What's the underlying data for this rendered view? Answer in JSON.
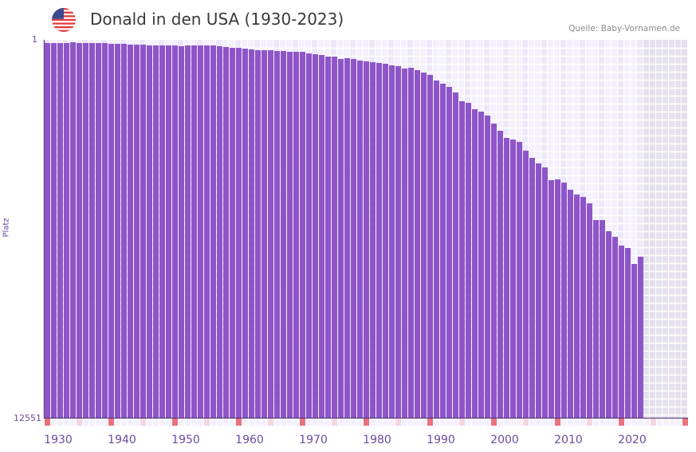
{
  "header": {
    "title": "Donald in den USA (1930-2023)",
    "source": "Quelle: Baby-Vornamen.de",
    "flag_icon": "us-flag-icon"
  },
  "colors": {
    "bar": "#8e55c8",
    "axis": "#6b4a9e",
    "decade_marker": "#e8737c",
    "half_decade_marker": "#f5d6de",
    "cell_a": "#f4f0fc",
    "cell_b": "#ede8f8",
    "future": "#e4e0ee"
  },
  "chart_data": {
    "type": "bar",
    "title": "Donald in den USA (1930-2023)",
    "xlabel": "",
    "ylabel": "Platz",
    "y_inverted": true,
    "ylim": [
      1,
      12551
    ],
    "y_tick_labels": [
      "1",
      "12551"
    ],
    "x_tick_labels": [
      "1930",
      "1940",
      "1950",
      "1960",
      "1970",
      "1980",
      "1990",
      "2000",
      "2010",
      "2020"
    ],
    "x_range": [
      1930,
      2030
    ],
    "grid": true,
    "start_year": 1930,
    "values": [
      107,
      107,
      107,
      107,
      80,
      107,
      107,
      107,
      107,
      107,
      133,
      133,
      133,
      160,
      160,
      160,
      186,
      186,
      186,
      186,
      186,
      213,
      186,
      186,
      186,
      186,
      186,
      213,
      239,
      266,
      266,
      292,
      319,
      345,
      345,
      345,
      372,
      372,
      398,
      398,
      398,
      451,
      478,
      504,
      557,
      557,
      636,
      610,
      636,
      689,
      716,
      742,
      769,
      795,
      848,
      875,
      954,
      928,
      1007,
      1087,
      1166,
      1351,
      1457,
      1563,
      1749,
      2040,
      2093,
      2305,
      2384,
      2516,
      2781,
      3020,
      3258,
      3311,
      3390,
      3682,
      3920,
      4105,
      4238,
      4661,
      4635,
      4741,
      4979,
      5138,
      5218,
      5430,
      5986,
      5986,
      6356,
      6542,
      6833,
      6912,
      7442,
      7204
    ]
  }
}
